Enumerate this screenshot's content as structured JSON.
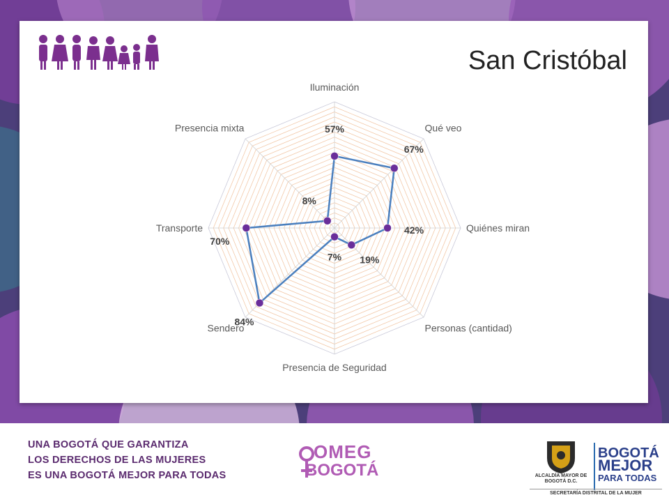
{
  "title": "San Cristóbal",
  "colors": {
    "series_line": "#4a7fbe",
    "marker": "#6a2e9a",
    "grid": "#f2c8a8",
    "spokes": "#d0d0d0",
    "background": "#4c3f7a"
  },
  "icons": [
    "family-figures-icon"
  ],
  "chart_data": {
    "type": "radar",
    "categories": [
      "Iluminación",
      "Qué veo",
      "Quiénes miran",
      "Personas (cantidad)",
      "Presencia de Seguridad",
      "Sendero",
      "Transporte",
      "Presencia mixta"
    ],
    "series": [
      {
        "values": [
          57,
          67,
          42,
          19,
          7,
          84,
          70,
          8
        ]
      }
    ],
    "data_labels": [
      "57%",
      "67%",
      "42%",
      "19%",
      "7%",
      "84%",
      "70%",
      "8%"
    ],
    "rlim": [
      0,
      100
    ],
    "grid": true,
    "unit": "%"
  },
  "footer": {
    "slogan": [
      "UNA BOGOTÁ QUE GARANTIZA",
      "LOS DERECHOS DE LAS MUJERES",
      "ES UNA BOGOTÁ MEJOR PARA TODAS"
    ],
    "omeg_top": "OMEG",
    "omeg_bottom": "BOGOTÁ",
    "alcaldia": "ALCALDÍA MAYOR DE BOGOTÁ D.C.",
    "brand_line1": "BOGOTÁ",
    "brand_line2": "MEJOR",
    "brand_line3": "PARA TODAS",
    "secretaria": "SECRETARÍA DISTRITAL DE LA MUJER"
  }
}
